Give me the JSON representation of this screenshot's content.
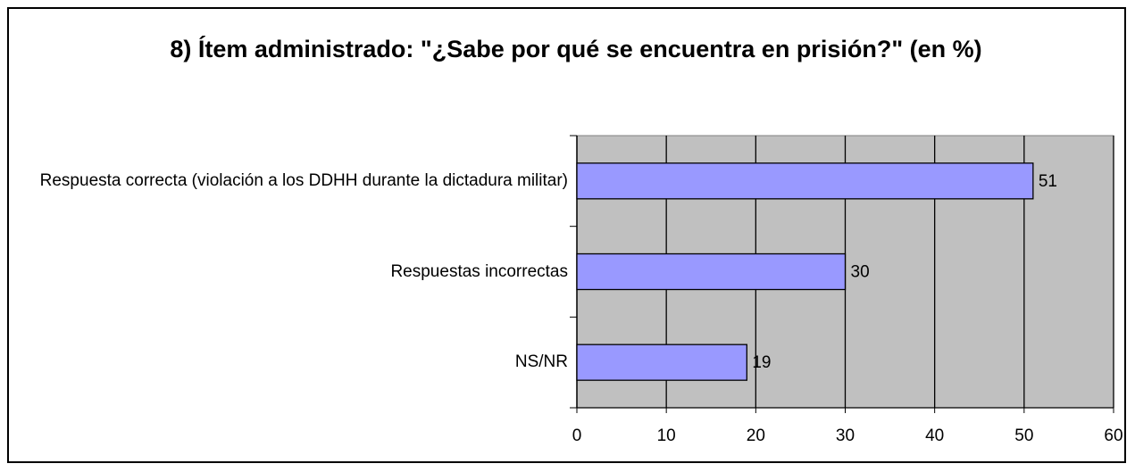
{
  "chart_data": {
    "type": "bar",
    "orientation": "horizontal",
    "title": "8) Ítem administrado: \"¿Sabe por qué se encuentra en prisión?\" (en %)",
    "categories": [
      "Respuesta correcta (violación a los DDHH durante la dictadura militar)",
      "Respuestas incorrectas",
      "NS/NR"
    ],
    "values": [
      51,
      30,
      19
    ],
    "color": "#9999ff",
    "xlim": [
      0,
      60
    ],
    "xticks": [
      0,
      10,
      20,
      30,
      40,
      50,
      60
    ],
    "grid": true
  }
}
